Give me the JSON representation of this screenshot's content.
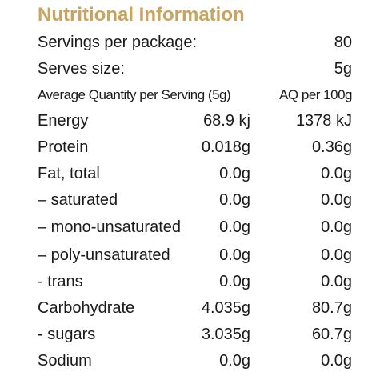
{
  "title": "Nutritional Information",
  "servings_per_package": {
    "label": "Servings per package:",
    "value": "80"
  },
  "serve_size": {
    "label": "Serves size:",
    "value": "5g"
  },
  "headers": {
    "per_serving": "Average Quantity per Serving (5g)",
    "per_100g": "AQ per 100g"
  },
  "nutrients": [
    {
      "name": "Energy",
      "per_serving": "68.9 kj",
      "per_100g": "1378 kJ"
    },
    {
      "name": "Protein",
      "per_serving": "0.018g",
      "per_100g": "0.36g"
    },
    {
      "name": "Fat, total",
      "per_serving": "0.0g",
      "per_100g": "0.0g"
    },
    {
      "name": "– saturated",
      "per_serving": "0.0g",
      "per_100g": "0.0g"
    },
    {
      "name": "– mono-unsaturated",
      "per_serving": "0.0g",
      "per_100g": "0.0g"
    },
    {
      "name": "– poly-unsaturated",
      "per_serving": "0.0g",
      "per_100g": "0.0g"
    },
    {
      "name": "- trans",
      "per_serving": "0.0g",
      "per_100g": "0.0g"
    },
    {
      "name": "Carbohydrate",
      "per_serving": "4.035g",
      "per_100g": "80.7g"
    },
    {
      "name": "- sugars",
      "per_serving": "3.035g",
      "per_100g": "60.7g"
    },
    {
      "name": "Sodium",
      "per_serving": "0.0g",
      "per_100g": "0.0g"
    }
  ],
  "colors": {
    "title": "#c9a45c",
    "text": "#1a1a1a",
    "background": "#ffffff"
  }
}
